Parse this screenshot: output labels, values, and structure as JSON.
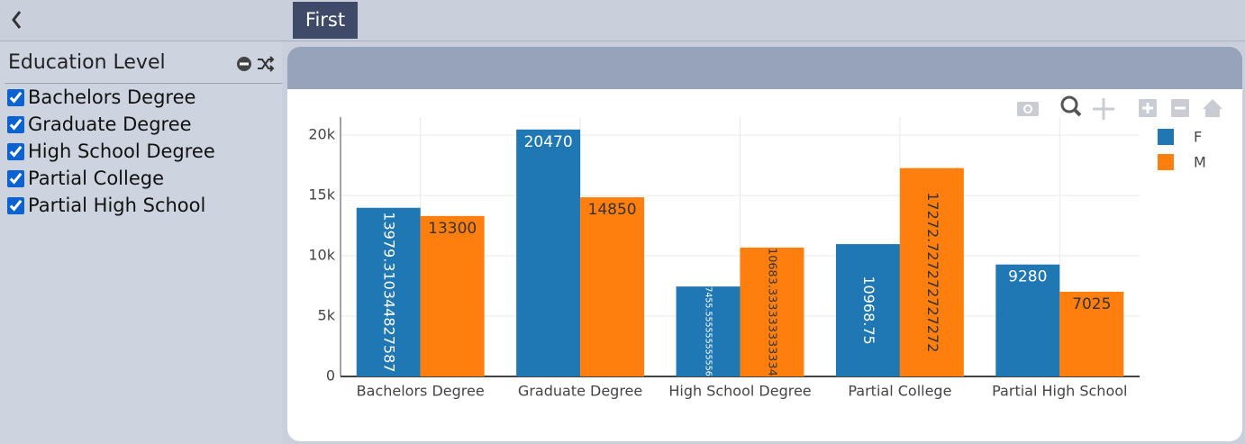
{
  "tab": "First",
  "filter": {
    "title": "Education Level",
    "options": [
      "Bachelors Degree",
      "Graduate Degree",
      "High School Degree",
      "Partial College",
      "Partial High School"
    ],
    "checked": [
      true,
      true,
      true,
      true,
      true
    ]
  },
  "chart_data": {
    "type": "bar",
    "categories": [
      "Bachelors Degree",
      "Graduate Degree",
      "High School Degree",
      "Partial College",
      "Partial High School"
    ],
    "series": [
      {
        "name": "F",
        "color": "#1f77b4",
        "values": [
          13979.310344827587,
          20470,
          7455.555555555556,
          10968.75,
          9280
        ]
      },
      {
        "name": "M",
        "color": "#ff7f0e",
        "values": [
          13300,
          14850,
          10683.333333333334,
          17272.727272727272,
          7025
        ]
      }
    ],
    "ylim": [
      0,
      21500
    ],
    "yticks": [
      0,
      {
        "value": 5000,
        "label": "5k"
      },
      {
        "value": 10000,
        "label": "10k"
      },
      {
        "value": 15000,
        "label": "15k"
      },
      {
        "value": 20000,
        "label": "20k"
      }
    ],
    "grid": true,
    "legend": "top-right"
  }
}
